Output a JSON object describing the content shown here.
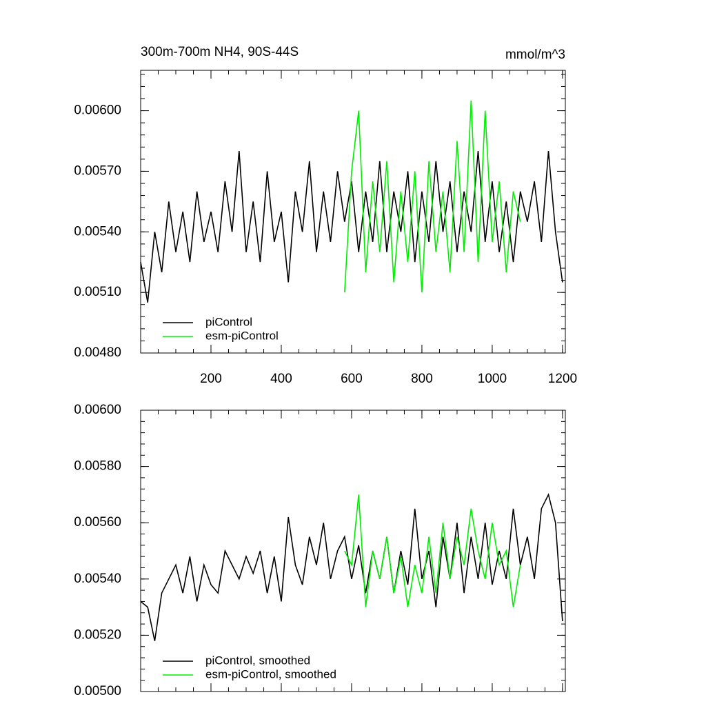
{
  "chart_data": [
    {
      "type": "line",
      "title": "300m-700m NH4, 90S-44S",
      "units": "mmol/m^3",
      "x": [
        0,
        20,
        40,
        60,
        80,
        100,
        120,
        140,
        160,
        180,
        200,
        220,
        240,
        260,
        280,
        300,
        320,
        340,
        360,
        380,
        400,
        420,
        440,
        460,
        480,
        500,
        520,
        540,
        560,
        580,
        600,
        620,
        640,
        660,
        680,
        700,
        720,
        740,
        760,
        780,
        800,
        820,
        840,
        860,
        880,
        900,
        920,
        940,
        960,
        980,
        1000,
        1020,
        1040,
        1060,
        1080,
        1100,
        1120,
        1140,
        1160,
        1180,
        1200
      ],
      "series": [
        {
          "name": "piControl",
          "color": "#000000",
          "values": [
            0.00525,
            0.00505,
            0.0054,
            0.0052,
            0.00555,
            0.0053,
            0.0055,
            0.00525,
            0.0056,
            0.00535,
            0.0055,
            0.0053,
            0.00565,
            0.0054,
            0.0058,
            0.0053,
            0.00555,
            0.00525,
            0.0057,
            0.00535,
            0.0055,
            0.00515,
            0.0056,
            0.0054,
            0.00575,
            0.0053,
            0.0056,
            0.00535,
            0.0057,
            0.00545,
            0.00565,
            0.0053,
            0.0056,
            0.00535,
            0.00575,
            0.0053,
            0.0056,
            0.0054,
            0.0057,
            0.00525,
            0.0056,
            0.00535,
            0.00575,
            0.0054,
            0.00565,
            0.0053,
            0.0056,
            0.0054,
            0.0058,
            0.00535,
            0.00565,
            0.0053,
            0.00555,
            0.00525,
            0.0056,
            0.00545,
            0.00565,
            0.00535,
            0.0058,
            0.0054,
            0.00515
          ]
        },
        {
          "name": "esm-piControl",
          "color": "#00ee00",
          "values": [
            null,
            null,
            null,
            null,
            null,
            null,
            null,
            null,
            null,
            null,
            null,
            null,
            null,
            null,
            null,
            null,
            null,
            null,
            null,
            null,
            null,
            null,
            null,
            null,
            null,
            null,
            null,
            null,
            null,
            0.0051,
            0.0057,
            0.006,
            0.0052,
            0.00565,
            0.0053,
            0.00575,
            0.00515,
            0.0056,
            0.00525,
            0.0057,
            0.0051,
            0.00575,
            0.0053,
            0.0056,
            0.0052,
            0.00585,
            0.0053,
            0.00605,
            0.00525,
            0.006,
            0.00535,
            0.00565,
            0.0052,
            0.0056,
            0.00545,
            null,
            null,
            null,
            null,
            null,
            null
          ]
        }
      ],
      "xlim": [
        0,
        1208
      ],
      "xticks": [
        200,
        400,
        600,
        800,
        1000,
        1200
      ],
      "ylim": [
        0.0048,
        0.0062
      ],
      "yticks": [
        {
          "value": 0.0048,
          "label": "0.00480"
        },
        {
          "value": 0.0051,
          "label": "0.00510"
        },
        {
          "value": 0.0054,
          "label": "0.00540"
        },
        {
          "value": 0.0057,
          "label": "0.00570"
        },
        {
          "value": 0.006,
          "label": "0.00600"
        }
      ],
      "legend": "lower left"
    },
    {
      "type": "line",
      "x": [
        0,
        20,
        40,
        60,
        80,
        100,
        120,
        140,
        160,
        180,
        200,
        220,
        240,
        260,
        280,
        300,
        320,
        340,
        360,
        380,
        400,
        420,
        440,
        460,
        480,
        500,
        520,
        540,
        560,
        580,
        600,
        620,
        640,
        660,
        680,
        700,
        720,
        740,
        760,
        780,
        800,
        820,
        840,
        860,
        880,
        900,
        920,
        940,
        960,
        980,
        1000,
        1020,
        1040,
        1060,
        1080,
        1100,
        1120,
        1140,
        1160,
        1180,
        1200
      ],
      "series": [
        {
          "name": "piControl, smoothed",
          "color": "#000000",
          "values": [
            0.00532,
            0.0053,
            0.00518,
            0.00535,
            0.0054,
            0.00545,
            0.00535,
            0.00548,
            0.00532,
            0.00545,
            0.00538,
            0.00535,
            0.0055,
            0.00545,
            0.0054,
            0.00548,
            0.00542,
            0.0055,
            0.00535,
            0.00548,
            0.00532,
            0.00562,
            0.00545,
            0.00538,
            0.00555,
            0.00545,
            0.0056,
            0.0054,
            0.0055,
            0.00555,
            0.0054,
            0.00552,
            0.00535,
            0.0055,
            0.0054,
            0.00555,
            0.00535,
            0.0055,
            0.00538,
            0.00565,
            0.0054,
            0.0055,
            0.0053,
            0.00555,
            0.0054,
            0.0056,
            0.00535,
            0.00555,
            0.0054,
            0.0056,
            0.00538,
            0.0055,
            0.0054,
            0.00565,
            0.00545,
            0.00555,
            0.0054,
            0.00565,
            0.0057,
            0.0056,
            0.00525
          ]
        },
        {
          "name": "esm-piControl, smoothed",
          "color": "#00ee00",
          "values": [
            null,
            null,
            null,
            null,
            null,
            null,
            null,
            null,
            null,
            null,
            null,
            null,
            null,
            null,
            null,
            null,
            null,
            null,
            null,
            null,
            null,
            null,
            null,
            null,
            null,
            null,
            null,
            null,
            null,
            0.0055,
            0.00545,
            0.0057,
            0.0053,
            0.0055,
            0.0054,
            0.00555,
            0.00535,
            0.00548,
            0.0053,
            0.00545,
            0.00535,
            0.00555,
            0.00535,
            0.0056,
            0.0054,
            0.00555,
            0.00545,
            0.00565,
            0.0055,
            0.0054,
            0.0056,
            0.00545,
            0.0055,
            0.0053,
            0.00545,
            null,
            null,
            null,
            null,
            null,
            null
          ]
        }
      ],
      "xlim": [
        0,
        1208
      ],
      "ylim": [
        0.005,
        0.006
      ],
      "yticks": [
        {
          "value": 0.005,
          "label": "0.00500"
        },
        {
          "value": 0.0052,
          "label": "0.00520"
        },
        {
          "value": 0.0054,
          "label": "0.00540"
        },
        {
          "value": 0.0056,
          "label": "0.00560"
        },
        {
          "value": 0.0058,
          "label": "0.00580"
        },
        {
          "value": 0.006,
          "label": "0.00600"
        }
      ],
      "legend": "lower left"
    }
  ]
}
